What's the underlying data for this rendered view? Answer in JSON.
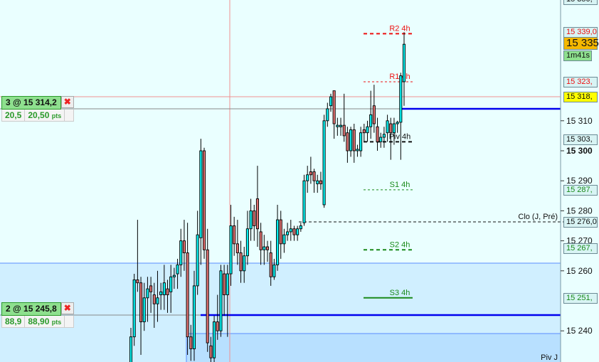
{
  "chart_data": {
    "type": "candlestick",
    "y_range": [
      15230,
      15350
    ],
    "colors": {
      "up": "#00f0f0",
      "down": "#e07070",
      "background": "#eaffff",
      "zone": "#d0efff"
    },
    "y_ticks": [
      {
        "value": 15310,
        "label": "15 310"
      },
      {
        "value": 15300,
        "label": "15 300"
      },
      {
        "value": 15290,
        "label": "15 290"
      },
      {
        "value": 15280,
        "label": "15 280"
      },
      {
        "value": 15270,
        "label": "15 270"
      },
      {
        "value": 15260,
        "label": "15 260"
      },
      {
        "value": 15240,
        "label": "15 240"
      }
    ],
    "ohlc": [
      [
        15229,
        15241,
        15225,
        15238
      ],
      [
        15238,
        15259,
        15235,
        15257
      ],
      [
        15257,
        15277,
        15253,
        15256
      ],
      [
        15256,
        15258,
        15232,
        15243
      ],
      [
        15243,
        15256,
        15240,
        15251
      ],
      [
        15251,
        15258,
        15243,
        15254
      ],
      [
        15255,
        15258,
        15246,
        15253
      ],
      [
        15252,
        15256,
        15241,
        15249
      ],
      [
        15249,
        15260,
        15243,
        15251
      ],
      [
        15252,
        15256,
        15247,
        15253
      ],
      [
        15252,
        15262,
        15247,
        15256
      ],
      [
        15254,
        15257,
        15246,
        15252
      ],
      [
        15253,
        15262,
        15246,
        15258
      ],
      [
        15258,
        15261,
        15254,
        15258.5
      ],
      [
        15259,
        15264,
        15254,
        15262
      ],
      [
        15262,
        15274,
        15258,
        15270
      ],
      [
        15270,
        15277,
        15260,
        15266
      ],
      [
        15266,
        15276,
        15232,
        15238
      ],
      [
        15238,
        15242,
        15230,
        15234
      ],
      [
        15234,
        15260,
        15230,
        15255
      ],
      [
        15255,
        15280,
        15252,
        15272
      ],
      [
        15271,
        15304,
        15262,
        15300
      ],
      [
        15300,
        15301,
        15264,
        15267
      ],
      [
        15267,
        15274,
        15233,
        15236
      ],
      [
        15235,
        15238,
        15228,
        15231
      ],
      [
        15231,
        15245,
        15229,
        15243
      ],
      [
        15243,
        15252,
        15237,
        15240
      ],
      [
        15240,
        15262,
        15238,
        15260
      ],
      [
        15259,
        15262,
        15245,
        15252
      ],
      [
        15252,
        15262,
        15238,
        15259
      ],
      [
        15259,
        15282,
        15255,
        15275
      ],
      [
        15275,
        15278,
        15265,
        15269
      ],
      [
        15269,
        15277,
        15262,
        15266
      ],
      [
        15266,
        15270,
        15256,
        15260
      ],
      [
        15260,
        15268,
        15256,
        15265
      ],
      [
        15265,
        15280,
        15262,
        15274
      ],
      [
        15274,
        15284,
        15270,
        15280
      ],
      [
        15280,
        15282,
        15270,
        15275
      ],
      [
        15284,
        15295,
        15268,
        15274
      ],
      [
        15273,
        15276,
        15262,
        15267
      ],
      [
        15267,
        15272,
        15262,
        15268
      ],
      [
        15268,
        15270,
        15263,
        15267
      ],
      [
        15266,
        15270,
        15255,
        15258
      ],
      [
        15258,
        15264,
        15257,
        15262
      ],
      [
        15262,
        15282,
        15260,
        15277
      ],
      [
        15277,
        15280,
        15264,
        15269
      ],
      [
        15269,
        15274,
        15266,
        15272
      ],
      [
        15272,
        15276,
        15270,
        15273
      ],
      [
        15273,
        15277,
        15270,
        15274
      ],
      [
        15274,
        15275,
        15270,
        15272
      ],
      [
        15272,
        15275,
        15270,
        15274
      ],
      [
        15274,
        15276,
        15273,
        15275
      ],
      [
        15276,
        15292,
        15275,
        15290
      ],
      [
        15290,
        15295,
        15286,
        15292
      ],
      [
        15293,
        15298,
        15289,
        15292
      ],
      [
        15293,
        15294,
        15286,
        15290
      ],
      [
        15289,
        15292,
        15286,
        15290
      ],
      [
        15290,
        15293,
        15287,
        15289
      ],
      [
        15282,
        15312,
        15281,
        15310
      ],
      [
        15310,
        15316,
        15308,
        15314
      ],
      [
        15315,
        15319,
        15313,
        15318
      ],
      [
        15320,
        15320,
        15304,
        15309
      ],
      [
        15308,
        15311,
        15305,
        15308.5
      ],
      [
        15308,
        15311,
        15305,
        15308.5
      ],
      [
        15308.5,
        15319,
        15303,
        15305
      ],
      [
        15306,
        15308,
        15296,
        15300
      ],
      [
        15300,
        15308,
        15298,
        15307
      ],
      [
        15307,
        15309,
        15296,
        15300
      ],
      [
        15300,
        15302,
        15298,
        15300.5
      ],
      [
        15300,
        15308,
        15298,
        15306
      ],
      [
        15307,
        15309,
        15303,
        15306
      ],
      [
        15306,
        15310,
        15303,
        15308
      ],
      [
        15308,
        15320,
        15304,
        15312
      ],
      [
        15315,
        15322,
        15306,
        15309
      ],
      [
        15308,
        15311,
        15300,
        15303
      ],
      [
        15303,
        15306,
        15301,
        15304.5
      ],
      [
        15304.5,
        15308,
        15301,
        15305.5
      ],
      [
        15306,
        15312,
        15303,
        15310
      ],
      [
        15309,
        15311,
        15297,
        15306
      ],
      [
        15306,
        15311,
        15302,
        15309
      ],
      [
        15309,
        15310,
        15306,
        15309.5
      ],
      [
        15309.5,
        15326,
        15297,
        15325
      ],
      [
        15323,
        15339.5,
        15315,
        15335.5
      ]
    ],
    "pivots": [
      {
        "label": "R2 4h",
        "value": 15339,
        "color": "#ee1111",
        "style": "dashed-bold"
      },
      {
        "label": "R1 4h",
        "value": 15323,
        "color": "#ee1111",
        "style": "dashed"
      },
      {
        "label": "Piv 4h",
        "value": 15303,
        "color": "#111111",
        "style": "dashed-bold"
      },
      {
        "label": "S1 4h",
        "value": 15287,
        "color": "#1a8a1a",
        "style": "dashed"
      },
      {
        "label": "S2 4h",
        "value": 15267,
        "color": "#1a8a1a",
        "style": "dashed-bold"
      },
      {
        "label": "S3 4h",
        "value": 15251,
        "color": "#1a8a1a",
        "style": "solid"
      }
    ],
    "close_prev_day": {
      "label": "Clo (J, Pré)",
      "value": 15276
    },
    "piv_day_label": "Piv J"
  },
  "price_badges": [
    {
      "text": "15 350,",
      "color": "#111",
      "bg": "#d8f4f4"
    },
    {
      "text": "15 339,0",
      "color": "#e11",
      "bg": "#d8f4f4"
    },
    {
      "text": "15 335",
      "color": "#111",
      "bg": "#f5b800"
    },
    {
      "text": "1m41s",
      "color": "#111",
      "bg": "#8ee08e"
    },
    {
      "text": "15 323,",
      "color": "#e11",
      "bg": "#d8f4f4"
    },
    {
      "text": "15 318,",
      "color": "#111",
      "bg": "#ffff00"
    },
    {
      "text": "15 303,",
      "color": "#111",
      "bg": "#d8f4f4"
    },
    {
      "text": "15 287,",
      "color": "#1a8a1a",
      "bg": "#d8f4f4"
    },
    {
      "text": "15 276,0",
      "color": "#111",
      "bg": "#d8f4f4"
    },
    {
      "text": "15 267,",
      "color": "#1a8a1a",
      "bg": "#d8f4f4"
    },
    {
      "text": "15 251,",
      "color": "#1a8a1a",
      "bg": "#d8f4f4"
    }
  ],
  "positions": [
    {
      "label": "3 @ 15 314,2",
      "qty": "20,5",
      "pts": "20,50",
      "unit": "pts",
      "close_icon": "close-x-icon"
    },
    {
      "label": "2 @ 15 245,8",
      "qty": "88,9",
      "pts": "88,90",
      "unit": "pts",
      "close_icon": "close-x-icon"
    }
  ]
}
